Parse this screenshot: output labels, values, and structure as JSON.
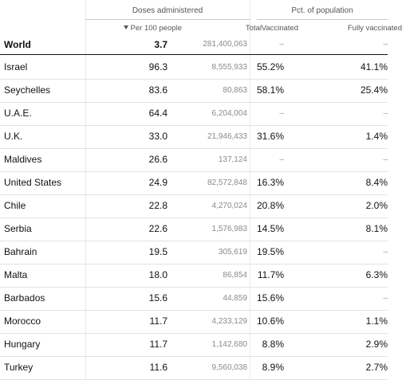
{
  "headers": {
    "group_doses": "Doses administered",
    "group_pct": "Pct. of population",
    "col_per100": "Per 100 people",
    "col_total": "Total",
    "col_vaccinated": "Vaccinated",
    "col_fully": "Fully vaccinated"
  },
  "sort_icon": "triangle-down-icon",
  "world": {
    "name": "World",
    "per100": "3.7",
    "total": "281,400,063",
    "vaccinated": "–",
    "fully": "–"
  },
  "rows": [
    {
      "name": "Israel",
      "per100": "96.3",
      "total": "8,555,933",
      "vaccinated": "55.2%",
      "fully": "41.1%"
    },
    {
      "name": "Seychelles",
      "per100": "83.6",
      "total": "80,863",
      "vaccinated": "58.1%",
      "fully": "25.4%"
    },
    {
      "name": "U.A.E.",
      "per100": "64.4",
      "total": "6,204,004",
      "vaccinated": "–",
      "fully": "–"
    },
    {
      "name": "U.K.",
      "per100": "33.0",
      "total": "21,946,433",
      "vaccinated": "31.6%",
      "fully": "1.4%"
    },
    {
      "name": "Maldives",
      "per100": "26.6",
      "total": "137,124",
      "vaccinated": "–",
      "fully": "–"
    },
    {
      "name": "United States",
      "per100": "24.9",
      "total": "82,572,848",
      "vaccinated": "16.3%",
      "fully": "8.4%"
    },
    {
      "name": "Chile",
      "per100": "22.8",
      "total": "4,270,024",
      "vaccinated": "20.8%",
      "fully": "2.0%"
    },
    {
      "name": "Serbia",
      "per100": "22.6",
      "total": "1,576,983",
      "vaccinated": "14.5%",
      "fully": "8.1%"
    },
    {
      "name": "Bahrain",
      "per100": "19.5",
      "total": "305,619",
      "vaccinated": "19.5%",
      "fully": "–"
    },
    {
      "name": "Malta",
      "per100": "18.0",
      "total": "86,854",
      "vaccinated": "11.7%",
      "fully": "6.3%"
    },
    {
      "name": "Barbados",
      "per100": "15.6",
      "total": "44,859",
      "vaccinated": "15.6%",
      "fully": "–"
    },
    {
      "name": "Morocco",
      "per100": "11.7",
      "total": "4,233,129",
      "vaccinated": "10.6%",
      "fully": "1.1%"
    },
    {
      "name": "Hungary",
      "per100": "11.7",
      "total": "1,142,680",
      "vaccinated": "8.8%",
      "fully": "2.9%"
    },
    {
      "name": "Turkey",
      "per100": "11.6",
      "total": "9,560,038",
      "vaccinated": "8.9%",
      "fully": "2.7%"
    }
  ]
}
